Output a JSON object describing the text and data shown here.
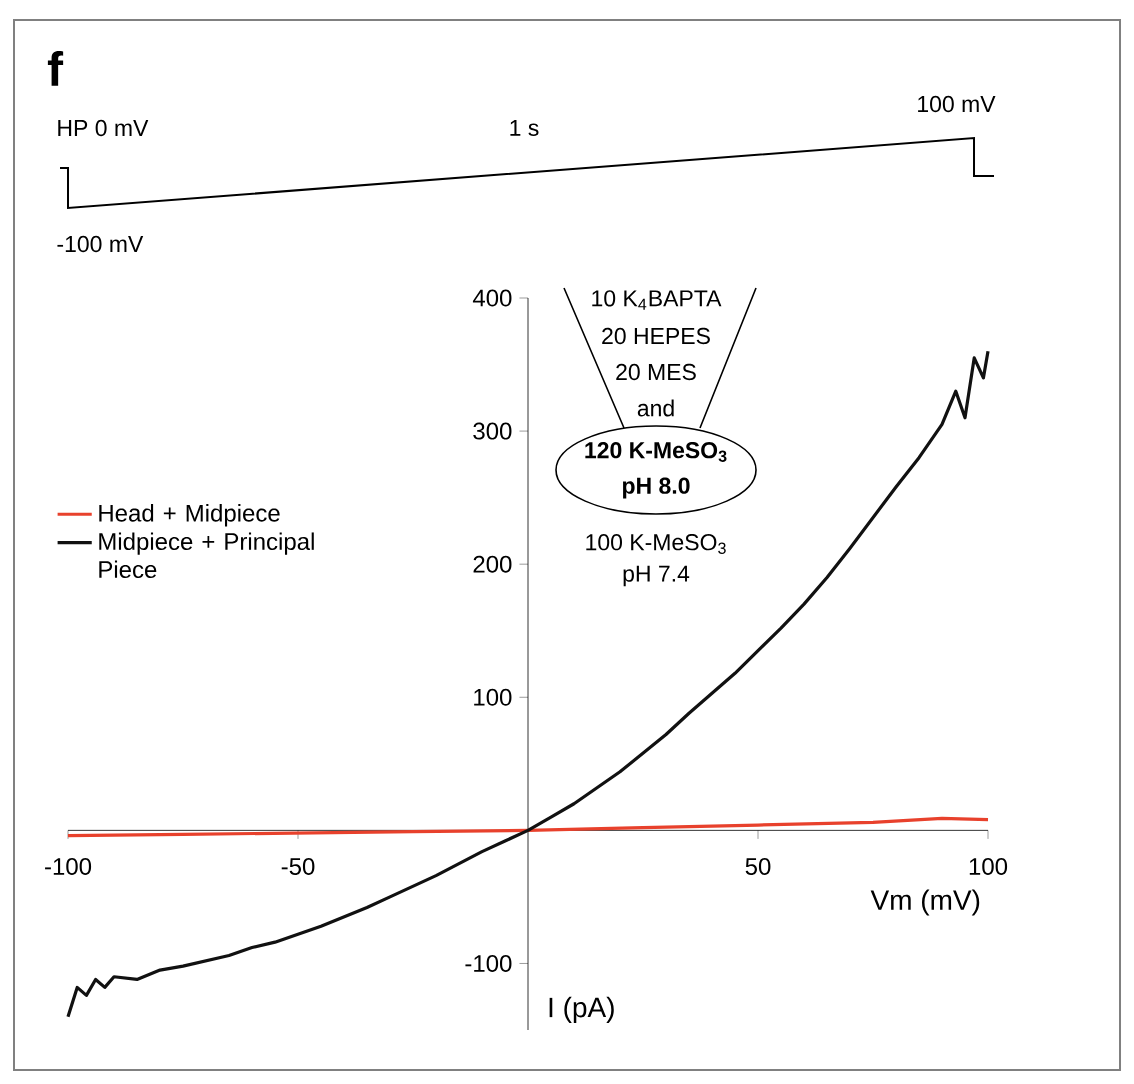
{
  "chart_data": {
    "type": "line",
    "title": "f",
    "xlabel": "Vm (mV)",
    "ylabel": "I (pA)",
    "xlim": [
      -100,
      100
    ],
    "ylim": [
      -150,
      400
    ],
    "xticks": [
      -100,
      -50,
      50,
      100
    ],
    "yticks": [
      -100,
      100,
      200,
      300,
      400
    ],
    "grid": false,
    "legend": "left",
    "marker": "none",
    "line_style": "solid",
    "series": [
      {
        "name": "Head + Midpiece",
        "color": "#e8412c",
        "x": [
          -100,
          -75,
          -50,
          -25,
          0,
          25,
          50,
          75,
          90,
          100
        ],
        "values": [
          -4,
          -3,
          -2,
          -1,
          0,
          2,
          4,
          6,
          9,
          8
        ]
      },
      {
        "name": "Midpiece + Principal Piece",
        "color": "#111111",
        "x": [
          -100,
          -98,
          -96,
          -94,
          -92,
          -90,
          -85,
          -80,
          -75,
          -70,
          -65,
          -60,
          -55,
          -50,
          -45,
          -40,
          -35,
          -30,
          -25,
          -20,
          -15,
          -10,
          -5,
          0,
          5,
          10,
          15,
          20,
          25,
          30,
          35,
          40,
          45,
          50,
          55,
          60,
          65,
          70,
          75,
          80,
          85,
          90,
          93,
          95,
          97,
          99,
          100
        ],
        "values": [
          -140,
          -118,
          -124,
          -112,
          -118,
          -110,
          -112,
          -105,
          -102,
          -98,
          -94,
          -88,
          -84,
          -78,
          -72,
          -65,
          -58,
          -50,
          -42,
          -34,
          -25,
          -16,
          -8,
          0,
          10,
          20,
          32,
          44,
          58,
          72,
          88,
          103,
          118,
          135,
          152,
          170,
          190,
          212,
          235,
          258,
          280,
          305,
          330,
          310,
          355,
          340,
          360
        ]
      }
    ],
    "annotations": [
      "HP 0 mV",
      "1 s",
      "100 mV",
      "-100 mV",
      "10 K$_{4}$BAPTA",
      "20 HEPES",
      "20 MES",
      "and",
      "120 K-MeSO$_{3}$",
      "pH 8.0",
      "100 K-MeSO$_{3}$",
      "pH 7.4"
    ]
  }
}
